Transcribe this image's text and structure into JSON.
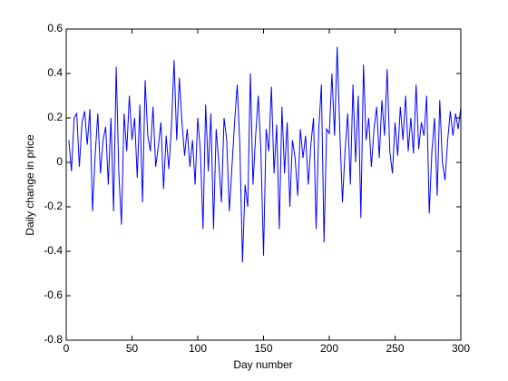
{
  "chart_data": {
    "type": "line",
    "xlabel": "Day number",
    "ylabel": "Daily change in price",
    "x": [
      2,
      4,
      6,
      8,
      10,
      12,
      14,
      16,
      18,
      20,
      22,
      24,
      26,
      28,
      30,
      32,
      34,
      36,
      38,
      40,
      42,
      44,
      46,
      48,
      50,
      52,
      54,
      56,
      58,
      60,
      62,
      64,
      66,
      68,
      70,
      72,
      74,
      76,
      78,
      80,
      82,
      84,
      86,
      88,
      90,
      92,
      94,
      96,
      98,
      100,
      102,
      104,
      106,
      108,
      110,
      112,
      114,
      116,
      118,
      120,
      122,
      124,
      126,
      128,
      130,
      132,
      134,
      136,
      138,
      140,
      142,
      144,
      146,
      148,
      150,
      152,
      154,
      156,
      158,
      160,
      162,
      164,
      166,
      168,
      170,
      172,
      174,
      176,
      178,
      180,
      182,
      184,
      186,
      188,
      190,
      192,
      194,
      196,
      198,
      200,
      202,
      204,
      206,
      208,
      210,
      212,
      214,
      216,
      218,
      220,
      222,
      224,
      226,
      228,
      230,
      232,
      234,
      236,
      238,
      240,
      242,
      244,
      246,
      248,
      250,
      252,
      254,
      256,
      258,
      260,
      262,
      264,
      266,
      268,
      270,
      272,
      274,
      276,
      278,
      280,
      282,
      284,
      286,
      288,
      290,
      292,
      294,
      296,
      298,
      300
    ],
    "series": [
      {
        "color": "#0000ff",
        "values": [
          0.1,
          -0.04,
          0.2,
          0.22,
          -0.02,
          0.18,
          0.23,
          0.08,
          0.24,
          -0.22,
          0.03,
          0.22,
          -0.05,
          0.1,
          0.16,
          -0.1,
          0.2,
          -0.22,
          0.43,
          -0.05,
          -0.28,
          0.22,
          0.05,
          0.3,
          0.1,
          0.2,
          -0.07,
          0.26,
          -0.18,
          0.37,
          0.12,
          0.05,
          0.25,
          -0.02,
          0.07,
          0.18,
          -0.12,
          0.12,
          -0.03,
          0.16,
          0.46,
          0.1,
          0.38,
          0.18,
          0.03,
          0.15,
          -0.02,
          0.1,
          -0.1,
          0.2,
          0.05,
          -0.3,
          0.26,
          -0.04,
          0.22,
          -0.3,
          0.15,
          0.0,
          -0.18,
          0.2,
          0.1,
          -0.22,
          -0.02,
          0.18,
          0.35,
          0.08,
          -0.45,
          -0.1,
          -0.2,
          0.4,
          -0.1,
          0.12,
          0.3,
          0.05,
          -0.42,
          0.15,
          0.05,
          0.34,
          -0.05,
          0.17,
          -0.3,
          0.25,
          -0.05,
          0.18,
          -0.2,
          0.1,
          0.02,
          -0.15,
          0.15,
          0.02,
          0.12,
          -0.1,
          0.08,
          0.2,
          -0.3,
          0.15,
          0.35,
          -0.36,
          0.15,
          0.13,
          0.4,
          0.12,
          0.52,
          0.14,
          -0.18,
          0.05,
          0.22,
          -0.1,
          0.35,
          0.0,
          0.3,
          -0.25,
          0.44,
          0.1,
          0.2,
          -0.02,
          0.15,
          0.25,
          0.02,
          0.28,
          0.12,
          0.42,
          0.05,
          -0.05,
          0.18,
          0.03,
          0.25,
          0.1,
          0.3,
          0.05,
          0.2,
          0.04,
          0.35,
          0.06,
          0.18,
          0.12,
          0.3,
          -0.23,
          0.05,
          0.2,
          -0.15,
          0.28,
          0.0,
          -0.08,
          0.1,
          0.23,
          0.12,
          0.22,
          0.15,
          0.25
        ]
      }
    ],
    "xlim": [
      0,
      300
    ],
    "xticks": [
      0,
      50,
      100,
      150,
      200,
      250,
      300
    ],
    "ylim": [
      -0.8,
      0.6
    ],
    "yticks": [
      -0.8,
      -0.6,
      -0.4,
      -0.2,
      0,
      0.2,
      0.4,
      0.6
    ],
    "grid": false
  }
}
